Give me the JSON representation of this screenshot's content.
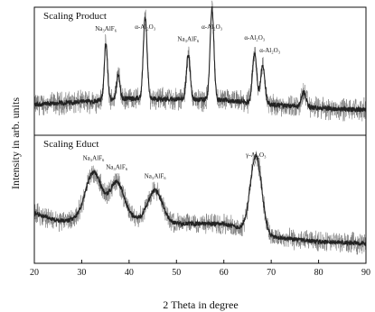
{
  "chart_data": {
    "type": "line",
    "xlabel": "2 Theta in degree",
    "ylabel": "Intensity in arb. units",
    "xlim": [
      20,
      90
    ],
    "xticks": [
      20,
      30,
      40,
      50,
      60,
      70,
      80,
      90
    ],
    "grid": false,
    "panels": [
      {
        "name": "Scaling Product",
        "baseline": [
          [
            20,
            30
          ],
          [
            30,
            33
          ],
          [
            40,
            37
          ],
          [
            50,
            36
          ],
          [
            60,
            35
          ],
          [
            70,
            30
          ],
          [
            80,
            26
          ],
          [
            90,
            24
          ]
        ],
        "noise": 11,
        "peaks": [
          {
            "x": 35.1,
            "height": 62,
            "width": 0.35,
            "label": "Na₃AlF₆"
          },
          {
            "x": 37.7,
            "height": 28,
            "width": 0.35,
            "label": ""
          },
          {
            "x": 43.4,
            "height": 90,
            "width": 0.4,
            "label": "α-Al₂O₃"
          },
          {
            "x": 52.5,
            "height": 50,
            "width": 0.4,
            "label": "Na₃AlF₆"
          },
          {
            "x": 57.5,
            "height": 102,
            "width": 0.4,
            "label": "α-Al₂O₃"
          },
          {
            "x": 66.5,
            "height": 55,
            "width": 0.45,
            "label": "α-Al₂O₃"
          },
          {
            "x": 68.2,
            "height": 42,
            "width": 0.45,
            "label": "α-Al₂O₃"
          },
          {
            "x": 76.9,
            "height": 16,
            "width": 0.5,
            "label": ""
          }
        ]
      },
      {
        "name": "Scaling Educt",
        "baseline": [
          [
            20,
            52
          ],
          [
            25,
            43
          ],
          [
            30,
            44
          ],
          [
            40,
            46
          ],
          [
            50,
            40
          ],
          [
            60,
            40
          ],
          [
            70,
            25
          ],
          [
            80,
            20
          ],
          [
            90,
            18
          ]
        ],
        "noise": 10,
        "peaks": [
          {
            "x": 32.5,
            "height": 52,
            "width": 1.7,
            "label": "Na₃AlF₆"
          },
          {
            "x": 37.4,
            "height": 40,
            "width": 1.5,
            "label": "Na₃AlF₆"
          },
          {
            "x": 45.5,
            "height": 34,
            "width": 1.5,
            "label": "Na₃AlF₆"
          },
          {
            "x": 66.8,
            "height": 85,
            "width": 1.2,
            "label": "γ-Al₂O₃"
          }
        ]
      }
    ]
  },
  "colors": {
    "axis": "#111111",
    "trace": "#222222",
    "noise": "#777777"
  }
}
